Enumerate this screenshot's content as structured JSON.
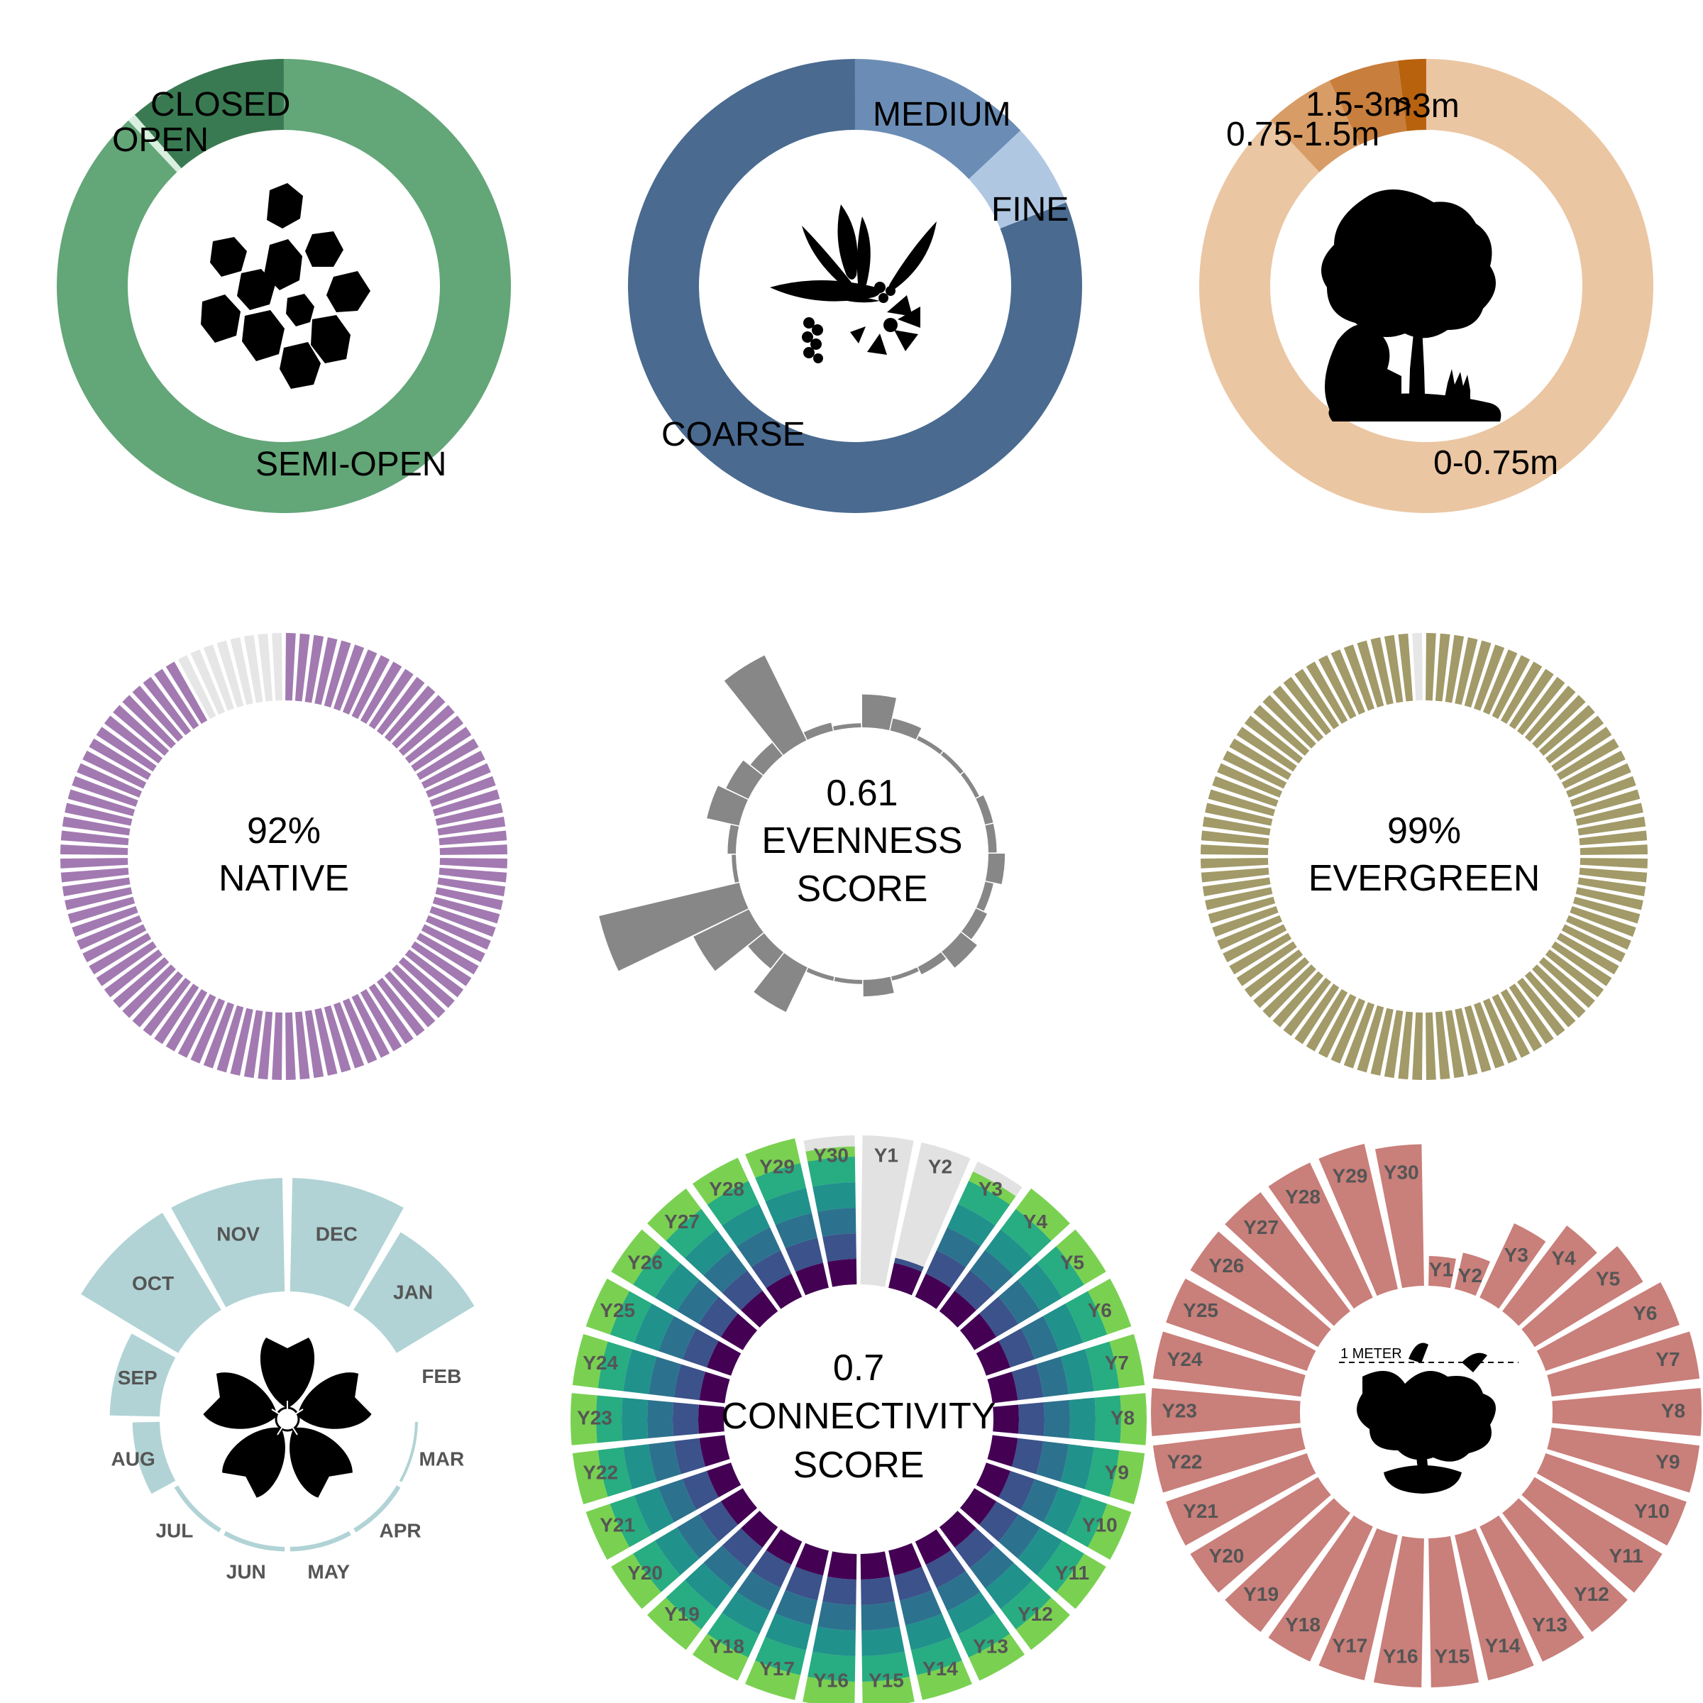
{
  "chart_data": [
    {
      "id": "canopy",
      "type": "pie",
      "categories": [
        "SEMI-OPEN",
        "OPEN",
        "CLOSED"
      ],
      "values": [
        88,
        0.6,
        11.4
      ],
      "colors": [
        "#63a678",
        "#d9efdf",
        "#3a7a52"
      ],
      "icon": "leaves-icon"
    },
    {
      "id": "texture",
      "type": "pie",
      "categories": [
        "COARSE",
        "MEDIUM",
        "FINE"
      ],
      "values": [
        81,
        13,
        6
      ],
      "colors": [
        "#4a6a90",
        "#6b8db5",
        "#b0c7e2"
      ],
      "icon": "foliage-texture-icon"
    },
    {
      "id": "height",
      "type": "pie",
      "categories": [
        "0-0.75m",
        "0.75-1.5m",
        "1.5-3m",
        ">3m"
      ],
      "values": [
        88,
        5,
        5,
        2
      ],
      "colors": [
        "#ebc6a2",
        "#d89d66",
        "#c87e3c",
        "#b8620e"
      ],
      "icon": "tree-icon"
    },
    {
      "id": "native",
      "type": "bar",
      "polar": true,
      "value": "92%",
      "label": "NATIVE",
      "n_bars": 100,
      "on_count": 92,
      "on_color": "#a27ab1",
      "off_color": "#e6e6e6"
    },
    {
      "id": "evenness",
      "type": "bar",
      "polar": true,
      "value": "0.61",
      "label": "EVENNESS",
      "label2": "SCORE",
      "values": [
        0.8,
        0.3,
        0.1,
        0.1,
        0.1,
        0.2,
        0.2,
        0.4,
        0.2,
        0.3,
        0.5,
        0.2,
        0.1,
        0.4,
        0.1,
        0.1,
        1.2,
        0.5,
        1.5,
        3.5,
        0.1,
        0.2,
        0.8,
        0.6,
        0.4,
        2.3,
        0.2,
        0.1
      ],
      "color": "#878787"
    },
    {
      "id": "evergreen",
      "type": "bar",
      "polar": true,
      "value": "99%",
      "label": "EVERGREEN",
      "n_bars": 100,
      "on_count": 99,
      "on_color": "#a29a68",
      "off_color": "#e6e6e6"
    },
    {
      "id": "bloom",
      "type": "bar",
      "polar": true,
      "categories": [
        "JAN",
        "FEB",
        "MAR",
        "APR",
        "MAY",
        "JUN",
        "JUL",
        "AUG",
        "SEP",
        "OCT",
        "NOV",
        "DEC"
      ],
      "values": [
        4,
        0,
        0.5,
        0.8,
        0.8,
        0.8,
        0.8,
        1.2,
        2.2,
        5,
        5,
        5
      ],
      "color": "#b1d3d5",
      "icon": "flower-icon"
    },
    {
      "id": "connectivity",
      "type": "bar",
      "polar": true,
      "value": "0.7",
      "label": "CONNECTIVITY",
      "label2": "SCORE",
      "categories": [
        "Y1",
        "Y2",
        "Y3",
        "Y4",
        "Y5",
        "Y6",
        "Y7",
        "Y8",
        "Y9",
        "Y10",
        "Y11",
        "Y12",
        "Y13",
        "Y14",
        "Y15",
        "Y16",
        "Y17",
        "Y18",
        "Y19",
        "Y20",
        "Y21",
        "Y22",
        "Y23",
        "Y24",
        "Y25",
        "Y26",
        "Y27",
        "Y28",
        "Y29",
        "Y30"
      ],
      "values": [
        0,
        0.2,
        0.9,
        1,
        1,
        1,
        1,
        1,
        1,
        1,
        1,
        1,
        1,
        1,
        1,
        1,
        1,
        1,
        1,
        1,
        1,
        1,
        1,
        1,
        1,
        1,
        1,
        1,
        1,
        0.9
      ],
      "layer_colors": [
        "#440154",
        "#3b528b",
        "#2c728e",
        "#21918c",
        "#27ad81",
        "#7ad151"
      ],
      "bg_color": "#e2e2e2"
    },
    {
      "id": "growth",
      "type": "bar",
      "polar": true,
      "categories": [
        "Y1",
        "Y2",
        "Y3",
        "Y4",
        "Y5",
        "Y6",
        "Y7",
        "Y8",
        "Y9",
        "Y10",
        "Y11",
        "Y12",
        "Y13",
        "Y14",
        "Y15",
        "Y16",
        "Y17",
        "Y18",
        "Y19",
        "Y20",
        "Y21",
        "Y22",
        "Y23",
        "Y24",
        "Y25",
        "Y26",
        "Y27",
        "Y28",
        "Y29",
        "Y30"
      ],
      "values": [
        0.2,
        0.25,
        0.55,
        0.72,
        0.85,
        0.95,
        1,
        1,
        1,
        1,
        1,
        1,
        1,
        1,
        1,
        1,
        1,
        1,
        1,
        1,
        1,
        1,
        1,
        1,
        1,
        1,
        1,
        1,
        1,
        0.95
      ],
      "color": "#c97f7a",
      "annotation": "1 METER",
      "icon": "bonsai-icon"
    }
  ]
}
